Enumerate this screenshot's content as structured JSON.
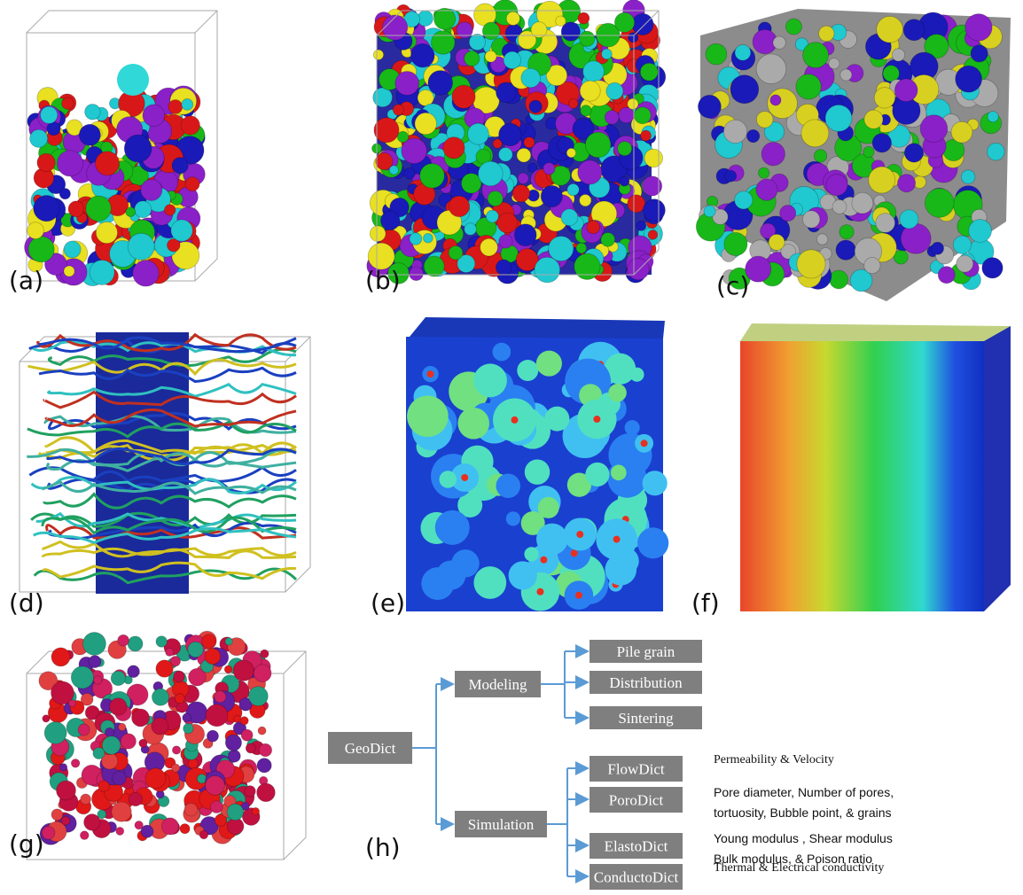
{
  "panels": [
    {
      "label": "(a)"
    },
    {
      "label": "(b)"
    },
    {
      "label": "(c)"
    },
    {
      "label": "(d)"
    },
    {
      "label": "(e)"
    },
    {
      "label": "(f)"
    },
    {
      "label": "(g)"
    },
    {
      "label": "(h)"
    }
  ],
  "diagram": {
    "root": "GeoDict",
    "branches": [
      {
        "label": "Modeling",
        "children": [
          {
            "label": "Pile grain"
          },
          {
            "label": "Distribution"
          },
          {
            "label": "Sintering"
          }
        ]
      },
      {
        "label": "Simulation",
        "children": [
          {
            "label": "FlowDict",
            "description": [
              "Permeability & Velocity"
            ]
          },
          {
            "label": "PoroDict",
            "description": [
              "Pore diameter, Number of pores,",
              "tortuosity, Bubble point, & grains"
            ]
          },
          {
            "label": "ElastoDict",
            "description": [
              "Young modulus , Shear modulus",
              "Bulk modulus, & Poison ratio"
            ]
          },
          {
            "label": "ConductoDict",
            "description": [
              "Thermal & Electrical conductivity"
            ]
          }
        ]
      }
    ]
  }
}
